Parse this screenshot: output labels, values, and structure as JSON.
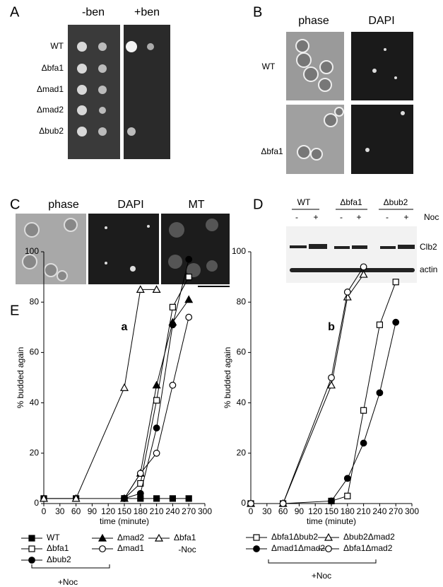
{
  "panels": {
    "A": {
      "label": "A",
      "columns": [
        "-ben",
        "+ben"
      ],
      "rows": [
        "WT",
        "Δbfa1",
        "Δmad1",
        "Δmad2",
        "Δbub2"
      ]
    },
    "B": {
      "label": "B",
      "columns": [
        "phase",
        "DAPI"
      ],
      "rows": [
        "WT",
        "Δbfa1"
      ]
    },
    "C": {
      "label": "C",
      "columns": [
        "phase",
        "DAPI",
        "MT"
      ]
    },
    "D": {
      "label": "D",
      "groups": [
        "WT",
        "Δbfa1",
        "Δbub2"
      ],
      "treatment": "Noc",
      "lanes": [
        "-",
        "+",
        "-",
        "+",
        "-",
        "+"
      ],
      "bands": [
        "Clb2",
        "actin"
      ]
    },
    "E": {
      "label": "E"
    }
  },
  "chart_data": [
    {
      "type": "line",
      "title": "a",
      "xlabel": "time (minute)",
      "ylabel": "% budded again",
      "xlim": [
        0,
        300
      ],
      "xticks": [
        0,
        30,
        60,
        90,
        120,
        150,
        180,
        210,
        240,
        270,
        300
      ],
      "ylim": [
        0,
        100
      ],
      "yticks": [
        0,
        20,
        40,
        60,
        80,
        100
      ],
      "series": [
        {
          "name": "WT",
          "color": "#000000",
          "marker": "square",
          "filled": true,
          "x": [
            0,
            60,
            150,
            180,
            210,
            240,
            270
          ],
          "values": [
            2,
            2,
            2,
            2,
            2,
            2,
            2
          ]
        },
        {
          "name": "Δmad2",
          "color": "#000000",
          "marker": "triangle",
          "filled": true,
          "x": [
            150,
            180,
            210,
            240,
            270
          ],
          "values": [
            2,
            12,
            47,
            72,
            81
          ]
        },
        {
          "name": "Δbfa1",
          "color": "#000000",
          "marker": "triangle",
          "filled": false,
          "x": [
            0,
            60,
            150,
            180,
            210
          ],
          "values": [
            2,
            2,
            46,
            85,
            85
          ]
        },
        {
          "name": "Δbfa1",
          "color": "#000000",
          "marker": "square",
          "filled": false,
          "x": [
            150,
            180,
            210,
            240,
            270
          ],
          "values": [
            2,
            8,
            41,
            78,
            90
          ]
        },
        {
          "name": "Δmad1",
          "color": "#000000",
          "marker": "circle",
          "filled": false,
          "x": [
            150,
            180,
            210,
            240,
            270
          ],
          "values": [
            2,
            12,
            20,
            47,
            74
          ]
        },
        {
          "name": "Δbub2",
          "color": "#000000",
          "marker": "circle",
          "filled": true,
          "x": [
            150,
            180,
            210,
            240,
            270
          ],
          "values": [
            2,
            4,
            30,
            71,
            97
          ]
        }
      ],
      "annotations": [
        "-Noc",
        "+Noc"
      ]
    },
    {
      "type": "line",
      "title": "b",
      "xlabel": "time (minute)",
      "ylabel": "% budded again",
      "xlim": [
        0,
        300
      ],
      "xticks": [
        0,
        30,
        60,
        90,
        120,
        150,
        180,
        210,
        240,
        270,
        300
      ],
      "ylim": [
        0,
        100
      ],
      "yticks": [
        0,
        20,
        40,
        60,
        80,
        100
      ],
      "series": [
        {
          "name": "Δbfa1Δbub2",
          "color": "#000000",
          "marker": "square",
          "filled": false,
          "x": [
            0,
            60,
            150,
            180,
            210,
            240,
            270
          ],
          "values": [
            0,
            0,
            1,
            3,
            37,
            71,
            88
          ]
        },
        {
          "name": "Δbub2Δmad2",
          "color": "#000000",
          "marker": "triangle",
          "filled": false,
          "x": [
            0,
            60,
            150,
            180,
            210
          ],
          "values": [
            0,
            0,
            47,
            82,
            91
          ]
        },
        {
          "name": "Δmad1Δmad2",
          "color": "#000000",
          "marker": "circle",
          "filled": true,
          "x": [
            150,
            180,
            210,
            240,
            270
          ],
          "values": [
            1,
            10,
            24,
            44,
            72
          ]
        },
        {
          "name": "Δbfa1Δmad2",
          "color": "#000000",
          "marker": "circle",
          "filled": false,
          "x": [
            0,
            60,
            150,
            180,
            210
          ],
          "values": [
            0,
            0,
            50,
            84,
            94
          ]
        }
      ],
      "annotations": [
        "+Noc"
      ]
    }
  ]
}
